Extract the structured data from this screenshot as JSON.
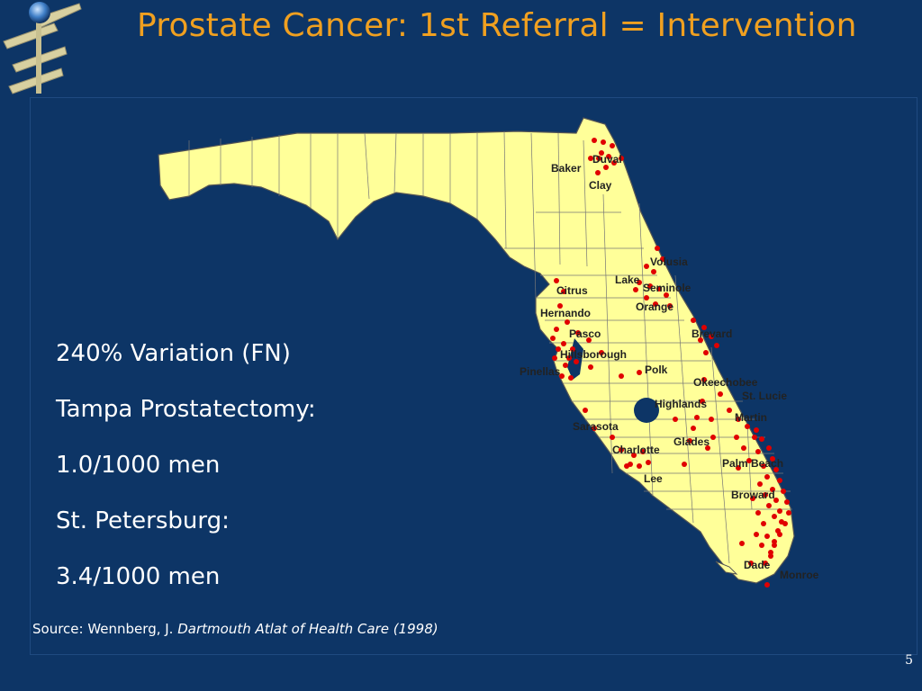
{
  "slide": {
    "title": "Prostate Cancer: 1st Referral = Intervention",
    "bullets": [
      "240% Variation (FN)",
      "Tampa Prostatectomy:",
      "1.0/1000 men",
      "St. Petersburg:",
      "3.4/1000 men"
    ],
    "source_prefix": "Source: Wennberg, J.",
    "source_work": "Dartmouth Atlat of Health Care (1998)",
    "page_number": "5"
  },
  "map": {
    "land_color": "#ffff99",
    "border_color": "#555555",
    "dot_color": "#e00000",
    "counties": [
      "Duval",
      "Baker",
      "Clay",
      "Volusia",
      "Lake",
      "Seminole",
      "Citrus",
      "Orange",
      "Hernando",
      "Brevard",
      "Pasco",
      "Hillsborough",
      "Pinellas",
      "Polk",
      "Okeechobee",
      "St. Lucie",
      "Highlands",
      "Martin",
      "Sarasota",
      "Glades",
      "Charlotte",
      "Palm Beach",
      "Lee",
      "Broward",
      "Dade",
      "Monroe"
    ]
  }
}
